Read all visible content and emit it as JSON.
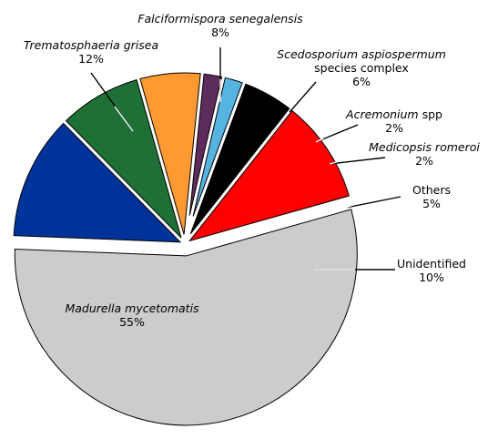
{
  "chart_data": {
    "type": "pie",
    "title": "",
    "start_angle_deg": 15.75,
    "direction": "counterclockwise",
    "slices": [
      {
        "parts": [
          {
            "text": "Unidentified",
            "italic": false
          }
        ],
        "value_label": "10%",
        "value": 10,
        "color": "#ff0000",
        "exploded": false
      },
      {
        "parts": [
          {
            "text": "Others",
            "italic": false
          }
        ],
        "value_label": "5%",
        "value": 5,
        "color": "#000000",
        "exploded": false
      },
      {
        "parts": [
          {
            "text": "Medicopsis romeroi",
            "italic": true
          }
        ],
        "value_label": "2%",
        "value": 2,
        "color": "#56b4e0",
        "exploded": false
      },
      {
        "parts": [
          {
            "text": "Acremonium",
            "italic": true
          },
          {
            "text": " spp",
            "italic": false
          }
        ],
        "value_label": "2%",
        "value": 2,
        "color": "#5e2c5c",
        "exploded": false
      },
      {
        "parts": [
          {
            "text": "Scedosporium aspiospermum",
            "italic": true
          }
        ],
        "parts2": [
          {
            "text": "species complex",
            "italic": false
          }
        ],
        "value_label": "6%",
        "value": 6,
        "color": "#ff9a33",
        "exploded": false
      },
      {
        "parts": [
          {
            "text": "Falciformispora senegalensis",
            "italic": true
          }
        ],
        "value_label": "8%",
        "value": 8,
        "color": "#1f7036",
        "exploded": false
      },
      {
        "parts": [
          {
            "text": "Trematosphaeria grisea",
            "italic": true
          }
        ],
        "value_label": "12%",
        "value": 12,
        "color": "#003399",
        "exploded": false
      },
      {
        "parts": [
          {
            "text": "Madurella mycetomatis",
            "italic": true
          }
        ],
        "value_label": "55%",
        "value": 55,
        "color": "#cccccc",
        "exploded": true
      }
    ]
  }
}
